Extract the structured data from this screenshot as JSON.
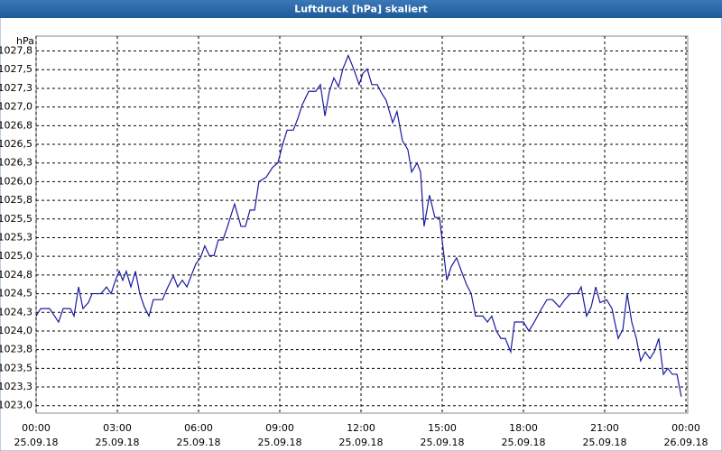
{
  "chart_data": {
    "type": "line",
    "title": "Luftdruck [hPa] skaliert",
    "y_unit": "hPa",
    "x": [
      0,
      0.17,
      0.5,
      0.83,
      1,
      1.27,
      1.4,
      1.57,
      1.73,
      1.93,
      2.07,
      2.4,
      2.6,
      2.77,
      2.93,
      3.07,
      3.2,
      3.33,
      3.5,
      3.67,
      3.83,
      4,
      4.17,
      4.33,
      4.67,
      4.83,
      5.07,
      5.23,
      5.4,
      5.57,
      5.73,
      5.9,
      6.07,
      6.23,
      6.4,
      6.57,
      6.73,
      6.9,
      7.07,
      7.33,
      7.57,
      7.73,
      7.9,
      8.07,
      8.23,
      8.5,
      8.73,
      8.93,
      9.1,
      9.27,
      9.5,
      9.67,
      9.83,
      10.07,
      10.33,
      10.5,
      10.67,
      10.83,
      11,
      11.17,
      11.33,
      11.53,
      11.73,
      11.93,
      12.07,
      12.23,
      12.4,
      12.6,
      12.77,
      12.93,
      13.17,
      13.33,
      13.53,
      13.73,
      13.87,
      14.07,
      14.2,
      14.33,
      14.53,
      14.73,
      14.9,
      15.17,
      15.33,
      15.53,
      15.73,
      15.9,
      16.07,
      16.23,
      16.5,
      16.67,
      16.83,
      17,
      17.17,
      17.33,
      17.53,
      17.67,
      18,
      18.2,
      18.4,
      18.67,
      18.87,
      19.07,
      19.33,
      19.53,
      19.73,
      20,
      20.13,
      20.33,
      20.5,
      20.67,
      20.83,
      21.07,
      21.27,
      21.5,
      21.67,
      21.83,
      22,
      22.17,
      22.33,
      22.5,
      22.67,
      22.83,
      23,
      23.17,
      23.33,
      23.5,
      23.67,
      23.83
    ],
    "series": [
      {
        "color": "#1a1a9e",
        "values": [
          1024.2,
          1024.3,
          1024.3,
          1024.12,
          1024.3,
          1024.3,
          1024.2,
          1024.59,
          1024.3,
          1024.38,
          1024.5,
          1024.5,
          1024.59,
          1024.5,
          1024.68,
          1024.8,
          1024.68,
          1024.8,
          1024.59,
          1024.8,
          1024.5,
          1024.32,
          1024.2,
          1024.42,
          1024.42,
          1024.56,
          1024.74,
          1024.59,
          1024.68,
          1024.59,
          1024.74,
          1024.9,
          1024.98,
          1025.14,
          1025.01,
          1025.01,
          1025.22,
          1025.22,
          1025.4,
          1025.7,
          1025.4,
          1025.4,
          1025.62,
          1025.62,
          1026.0,
          1026.06,
          1026.19,
          1026.25,
          1026.49,
          1026.69,
          1026.69,
          1026.85,
          1027.03,
          1027.21,
          1027.21,
          1027.3,
          1026.88,
          1027.21,
          1027.39,
          1027.27,
          1027.51,
          1027.69,
          1027.51,
          1027.3,
          1027.45,
          1027.51,
          1027.3,
          1027.3,
          1027.18,
          1027.09,
          1026.79,
          1026.94,
          1026.55,
          1026.43,
          1026.13,
          1026.25,
          1026.13,
          1025.4,
          1025.82,
          1025.52,
          1025.52,
          1024.68,
          1024.86,
          1024.98,
          1024.78,
          1024.62,
          1024.5,
          1024.2,
          1024.2,
          1024.12,
          1024.2,
          1024.0,
          1023.9,
          1023.9,
          1023.72,
          1024.12,
          1024.12,
          1024.0,
          1024.12,
          1024.3,
          1024.42,
          1024.42,
          1024.32,
          1024.42,
          1024.5,
          1024.5,
          1024.59,
          1024.2,
          1024.32,
          1024.59,
          1024.38,
          1024.42,
          1024.3,
          1023.9,
          1024.02,
          1024.5,
          1024.12,
          1023.9,
          1023.6,
          1023.72,
          1023.63,
          1023.72,
          1023.9,
          1023.42,
          1023.5,
          1023.42,
          1023.42,
          1023.12
        ]
      }
    ],
    "xlim": [
      0,
      24
    ],
    "xticks": [
      {
        "value": 0,
        "label": "00:00"
      },
      {
        "value": 3,
        "label": "03:00"
      },
      {
        "value": 6,
        "label": "06:00"
      },
      {
        "value": 9,
        "label": "09:00"
      },
      {
        "value": 12,
        "label": "12:00"
      },
      {
        "value": 15,
        "label": "15:00"
      },
      {
        "value": 18,
        "label": "18:00"
      },
      {
        "value": 21,
        "label": "21:00"
      },
      {
        "value": 24,
        "label": "00:00"
      }
    ],
    "xtick_dates": [
      "25.09.18",
      "25.09.18",
      "25.09.18",
      "25.09.18",
      "25.09.18",
      "25.09.18",
      "25.09.18",
      "25.09.18",
      "26.09.18"
    ],
    "ylim": [
      1022.9,
      1027.95
    ],
    "yticks": [
      {
        "value": 1023,
        "label": "1023,0"
      },
      {
        "value": 1023.25,
        "label": "1023,3"
      },
      {
        "value": 1023.5,
        "label": "1023,5"
      },
      {
        "value": 1023.75,
        "label": "1023,8"
      },
      {
        "value": 1024,
        "label": "1024,0"
      },
      {
        "value": 1024.25,
        "label": "1024,3"
      },
      {
        "value": 1024.5,
        "label": "1024,5"
      },
      {
        "value": 1024.75,
        "label": "1024,8"
      },
      {
        "value": 1025,
        "label": "1025,0"
      },
      {
        "value": 1025.25,
        "label": "1025,3"
      },
      {
        "value": 1025.5,
        "label": "1025,5"
      },
      {
        "value": 1025.75,
        "label": "1025,8"
      },
      {
        "value": 1026,
        "label": "1026,0"
      },
      {
        "value": 1026.25,
        "label": "1026,3"
      },
      {
        "value": 1026.5,
        "label": "1026,5"
      },
      {
        "value": 1026.75,
        "label": "1026,8"
      },
      {
        "value": 1027,
        "label": "1027,0"
      },
      {
        "value": 1027.25,
        "label": "1027,3"
      },
      {
        "value": 1027.5,
        "label": "1027,5"
      },
      {
        "value": 1027.75,
        "label": "1027,8"
      }
    ],
    "grid": true
  }
}
